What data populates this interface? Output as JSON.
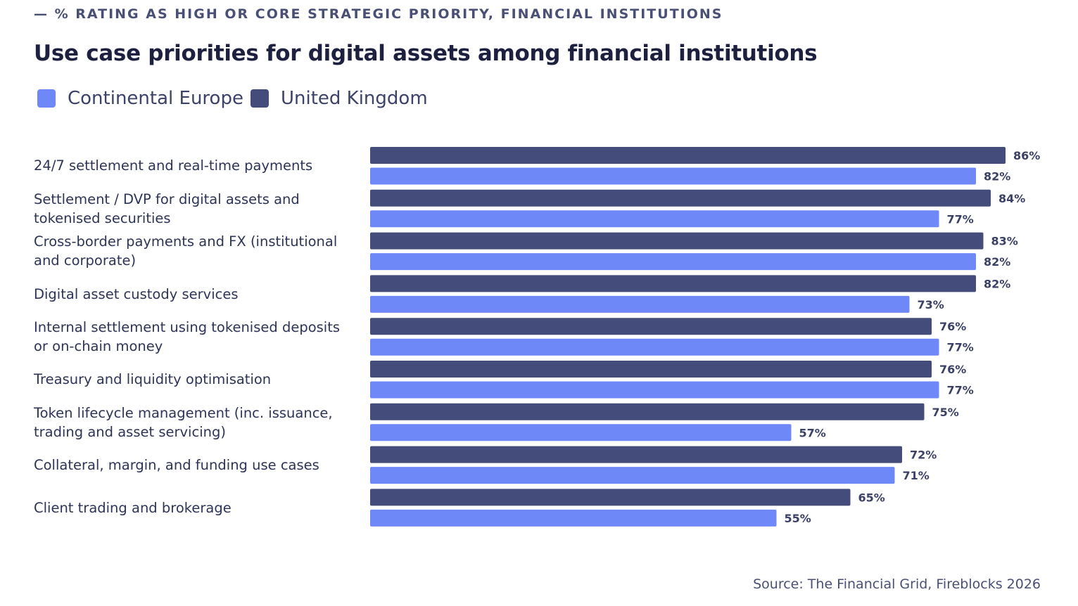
{
  "eyebrow": "— % RATING AS HIGH OR CORE STRATEGIC PRIORITY,  FINANCIAL INSTITUTIONS",
  "colors": {
    "continental_europe": "#6e88f7",
    "united_kingdom": "#434c7a",
    "value_label": "#3a4066"
  },
  "legend": {
    "continental_europe": "Continental Europe",
    "united_kingdom": "United Kingdom"
  },
  "source": "Source: The Financial Grid, Fireblocks 2026",
  "chart_data": {
    "type": "bar",
    "orientation": "horizontal",
    "title": "Use case priorities for digital assets among financial institutions",
    "value_suffix": "%",
    "xlim": [
      0,
      100
    ],
    "grid": false,
    "legend_position": "top-left",
    "categories": [
      "24/7 settlement and real-time payments",
      "Settlement / DVP for digital assets and tokenised securities",
      "Cross-border payments and FX (institutional and corporate)",
      "Digital asset custody services",
      "Internal settlement using tokenised deposits or on-chain money",
      "Treasury and liquidity optimisation",
      "Token lifecycle management (inc. issuance, trading and asset servicing)",
      "Collateral, margin, and funding use cases",
      "Client trading and brokerage"
    ],
    "series": [
      {
        "name": "United Kingdom",
        "values": [
          86,
          84,
          83,
          82,
          76,
          76,
          75,
          72,
          65
        ]
      },
      {
        "name": "Continental Europe",
        "values": [
          82,
          77,
          82,
          73,
          77,
          77,
          57,
          71,
          55
        ]
      }
    ]
  }
}
